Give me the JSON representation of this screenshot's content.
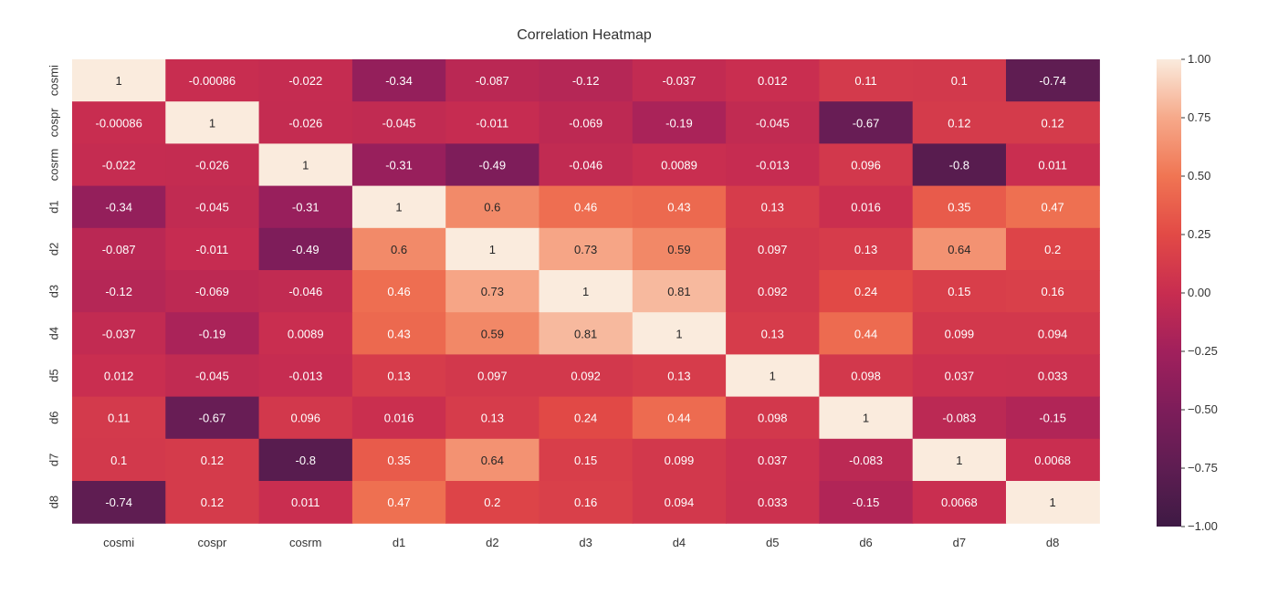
{
  "chart_data": {
    "type": "heatmap",
    "title": "Correlation Heatmap",
    "xlabel": "",
    "ylabel": "",
    "labels": [
      "cosmi",
      "cospr",
      "cosrm",
      "d1",
      "d2",
      "d3",
      "d4",
      "d5",
      "d6",
      "d7",
      "d8"
    ],
    "matrix": [
      [
        1,
        -0.00086,
        -0.022,
        -0.34,
        -0.087,
        -0.12,
        -0.037,
        0.012,
        0.11,
        0.1,
        -0.74
      ],
      [
        -0.00086,
        1,
        -0.026,
        -0.045,
        -0.011,
        -0.069,
        -0.19,
        -0.045,
        -0.67,
        0.12,
        0.12
      ],
      [
        -0.022,
        -0.026,
        1,
        -0.31,
        -0.49,
        -0.046,
        0.0089,
        -0.013,
        0.096,
        -0.8,
        0.011
      ],
      [
        -0.34,
        -0.045,
        -0.31,
        1,
        0.6,
        0.46,
        0.43,
        0.13,
        0.016,
        0.35,
        0.47
      ],
      [
        -0.087,
        -0.011,
        -0.49,
        0.6,
        1,
        0.73,
        0.59,
        0.097,
        0.13,
        0.64,
        0.2
      ],
      [
        -0.12,
        -0.069,
        -0.046,
        0.46,
        0.73,
        1,
        0.81,
        0.092,
        0.24,
        0.15,
        0.16
      ],
      [
        -0.037,
        -0.19,
        0.0089,
        0.43,
        0.59,
        0.81,
        1,
        0.13,
        0.44,
        0.099,
        0.094
      ],
      [
        0.012,
        -0.045,
        -0.013,
        0.13,
        0.097,
        0.092,
        0.13,
        1,
        0.098,
        0.037,
        0.033
      ],
      [
        0.11,
        -0.67,
        0.096,
        0.016,
        0.13,
        0.24,
        0.44,
        0.098,
        1,
        -0.083,
        -0.15
      ],
      [
        0.1,
        0.12,
        -0.8,
        0.35,
        0.64,
        0.15,
        0.099,
        0.037,
        -0.083,
        1,
        0.0068
      ],
      [
        -0.74,
        0.12,
        0.011,
        0.47,
        0.2,
        0.16,
        0.094,
        0.033,
        -0.15,
        0.0068,
        1
      ]
    ],
    "colorbar": {
      "min": -1.0,
      "max": 1.0,
      "ticks": [
        1.0,
        0.75,
        0.5,
        0.25,
        0.0,
        -0.25,
        -0.5,
        -0.75,
        -1.0
      ],
      "tick_labels": [
        "1.00",
        "0.75",
        "0.50",
        "0.25",
        "0.00",
        "−0.25",
        "−0.50",
        "−0.75",
        "−1.00"
      ]
    },
    "colormap": {
      "name": "rocket",
      "stops": [
        [
          -1.0,
          "#3e1a44"
        ],
        [
          -0.75,
          "#5e1d52"
        ],
        [
          -0.5,
          "#7d1d5a"
        ],
        [
          -0.25,
          "#a1205c"
        ],
        [
          0.0,
          "#c82d50"
        ],
        [
          0.25,
          "#e24a46"
        ],
        [
          0.5,
          "#f07553"
        ],
        [
          0.75,
          "#f6a98a"
        ],
        [
          1.0,
          "#faebdd"
        ]
      ]
    },
    "legend": "colorbar-right",
    "grid": false
  }
}
